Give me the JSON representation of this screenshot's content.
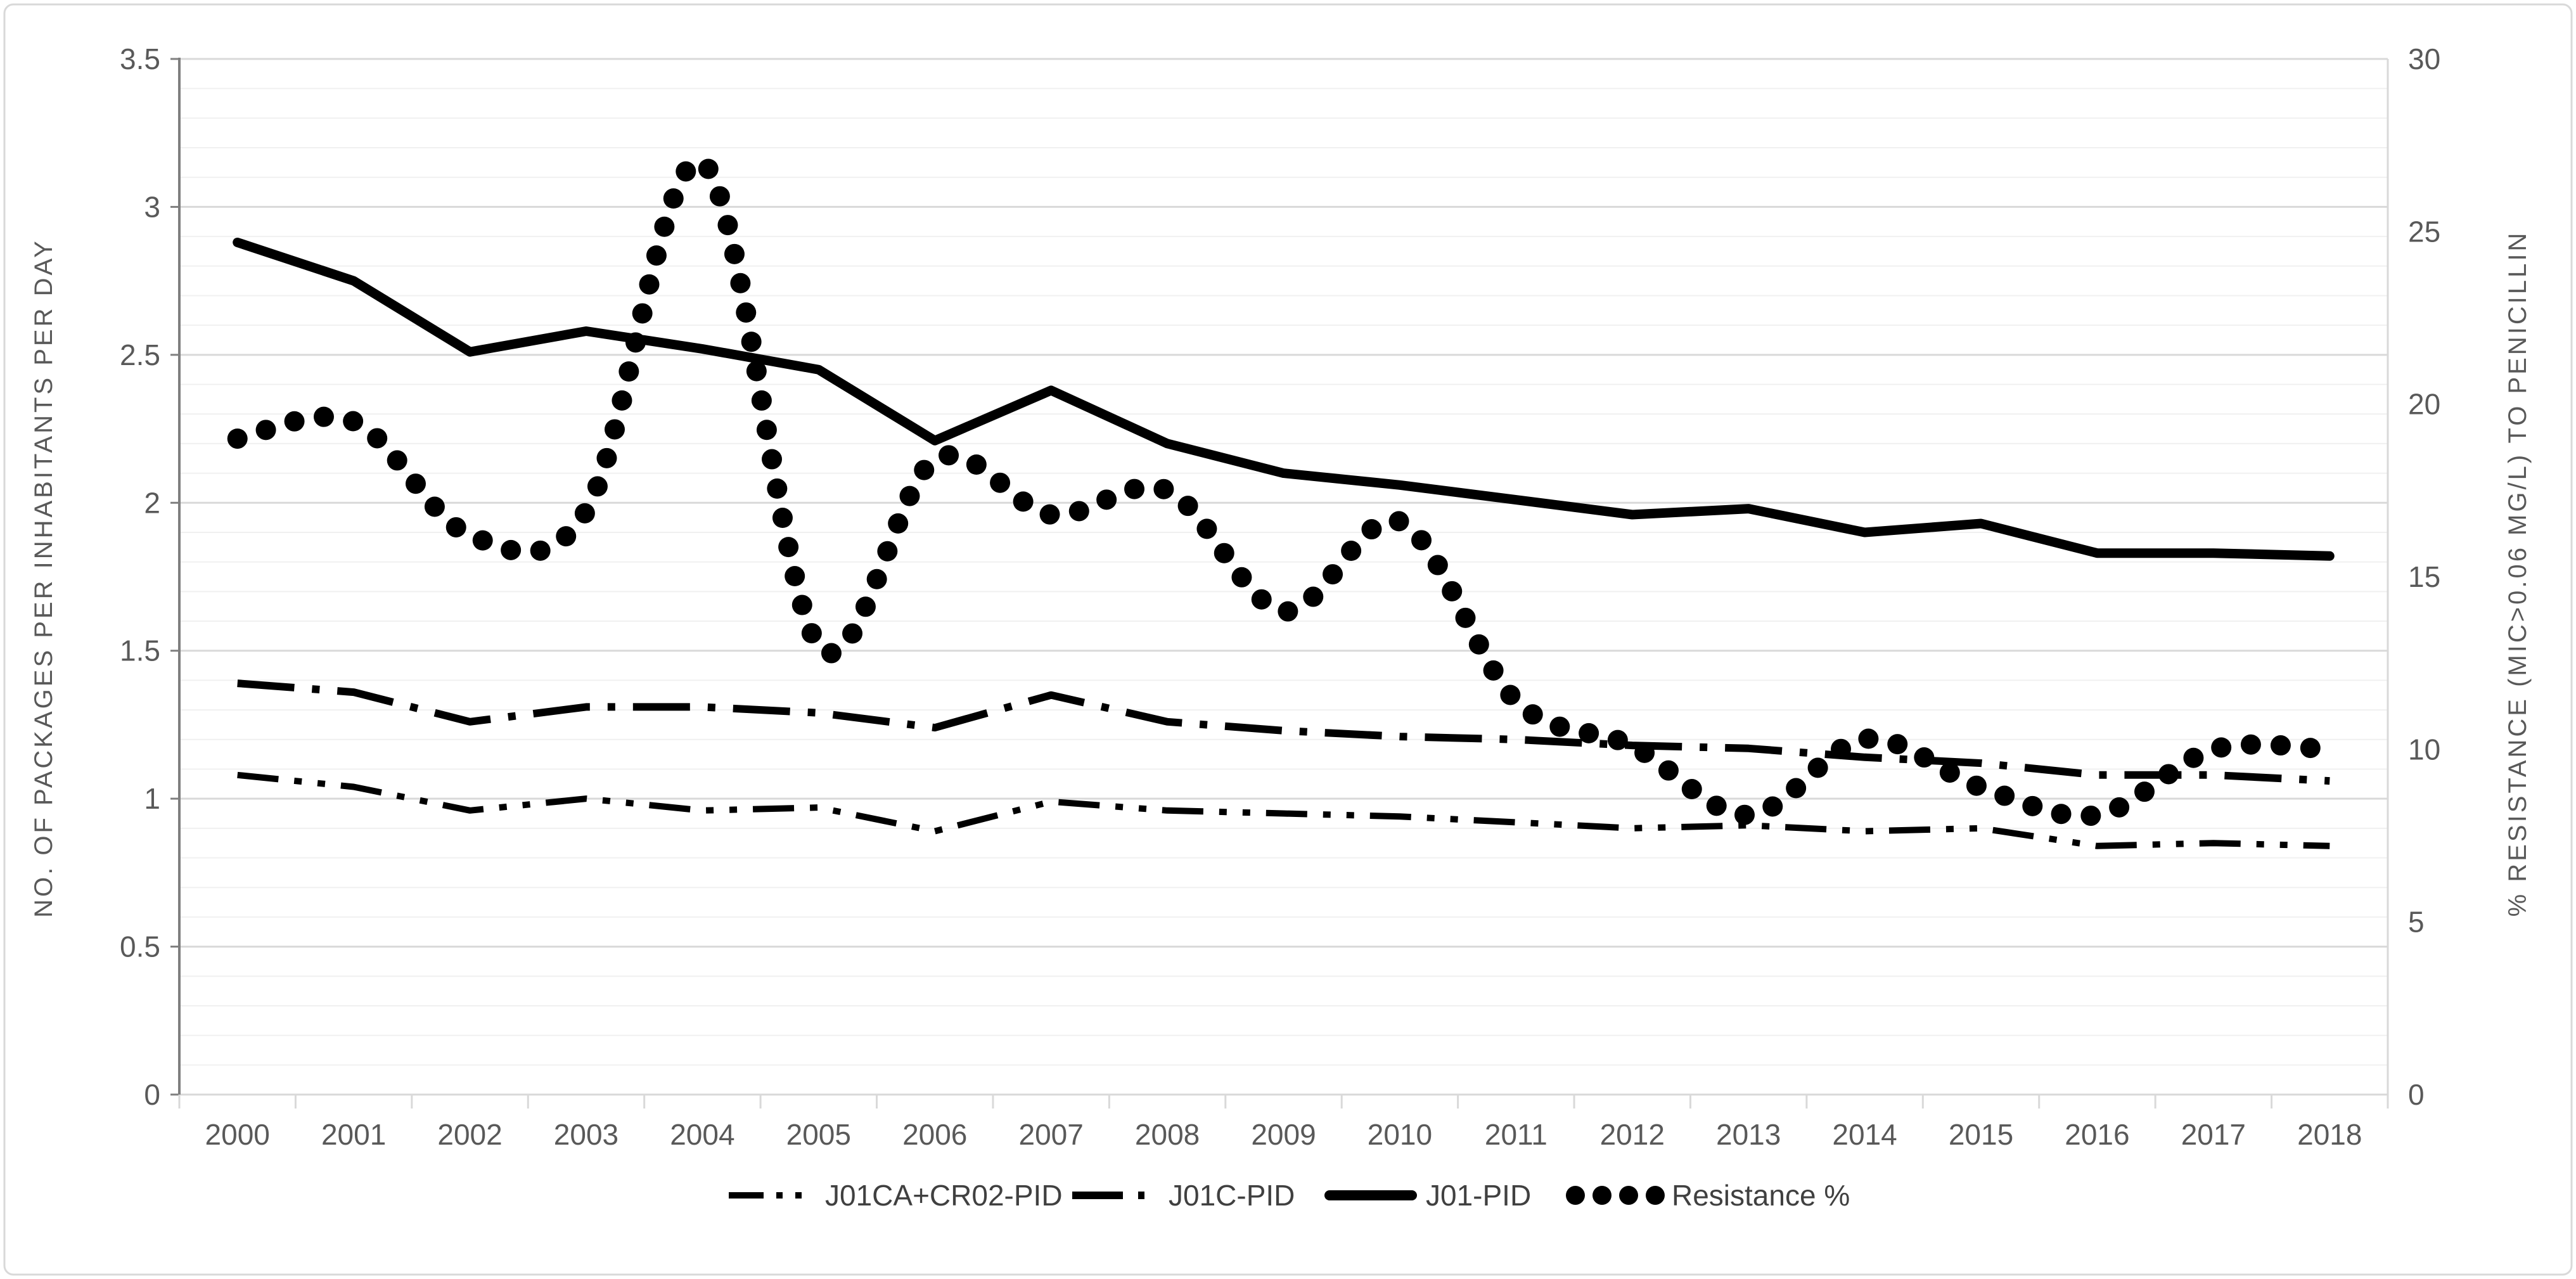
{
  "chart_data": {
    "type": "line",
    "title": "",
    "x": [
      "2000",
      "2001",
      "2002",
      "2003",
      "2004",
      "2005",
      "2006",
      "2007",
      "2008",
      "2009",
      "2010",
      "2011",
      "2012",
      "2013",
      "2014",
      "2015",
      "2016",
      "2017",
      "2018"
    ],
    "series": [
      {
        "name": "J01CA+CR02-PID",
        "axis": "left",
        "style": "dash-dot-dot",
        "color": "#000000",
        "values": [
          1.08,
          1.04,
          0.96,
          1.0,
          0.96,
          0.97,
          0.89,
          0.99,
          0.96,
          0.95,
          0.94,
          0.92,
          0.9,
          0.91,
          0.89,
          0.9,
          0.84,
          0.85,
          0.84
        ]
      },
      {
        "name": "J01C-PID",
        "axis": "left",
        "style": "long-dash-dot",
        "color": "#000000",
        "values": [
          1.39,
          1.36,
          1.26,
          1.31,
          1.31,
          1.29,
          1.24,
          1.35,
          1.26,
          1.23,
          1.21,
          1.2,
          1.18,
          1.17,
          1.14,
          1.12,
          1.08,
          1.08,
          1.06
        ]
      },
      {
        "name": "J01-PID",
        "axis": "left",
        "style": "solid",
        "color": "#000000",
        "values": [
          2.88,
          2.75,
          2.51,
          2.58,
          2.52,
          2.45,
          2.21,
          2.38,
          2.2,
          2.1,
          2.06,
          2.01,
          1.96,
          1.98,
          1.9,
          1.93,
          1.83,
          1.83,
          1.82
        ]
      },
      {
        "name": "Resistance %",
        "axis": "right",
        "style": "dotted-smooth",
        "color": "#000000",
        "values": [
          19.0,
          19.5,
          16.2,
          16.9,
          27.0,
          13.0,
          18.4,
          16.8,
          17.5,
          14.0,
          16.6,
          11.4,
          10.1,
          8.1,
          10.3,
          8.9,
          8.1,
          10.0,
          10.0
        ]
      }
    ],
    "left_axis": {
      "title": "NO. OF PACKAGES PER INHABITANTS PER DAY",
      "min": 0,
      "max": 3.5,
      "major_step": 0.5,
      "minor_step": 0.1,
      "tick_labels": [
        "0",
        "0.5",
        "1",
        "1.5",
        "2",
        "2.5",
        "3",
        "3.5"
      ]
    },
    "right_axis": {
      "title": "% RESISTANCE (MIC>0.06 MG/L) TO PENICILLIN",
      "min": 0,
      "max": 30,
      "major_step": 5,
      "tick_labels": [
        "0",
        "5",
        "10",
        "15",
        "20",
        "25",
        "30"
      ]
    },
    "grid": "horizontal minor+major, on",
    "legend_position": "bottom-center"
  },
  "colors": {
    "background": "#ffffff",
    "frame_border": "#d9d9d9",
    "gridline_minor": "#f0f0f0",
    "gridline_major": "#d9d9d9",
    "y_axis_line": "#7f7f7f",
    "light_axis_line": "#d9d9d9",
    "tick_text": "#595959",
    "legend_text": "#404040",
    "series": "#000000"
  }
}
